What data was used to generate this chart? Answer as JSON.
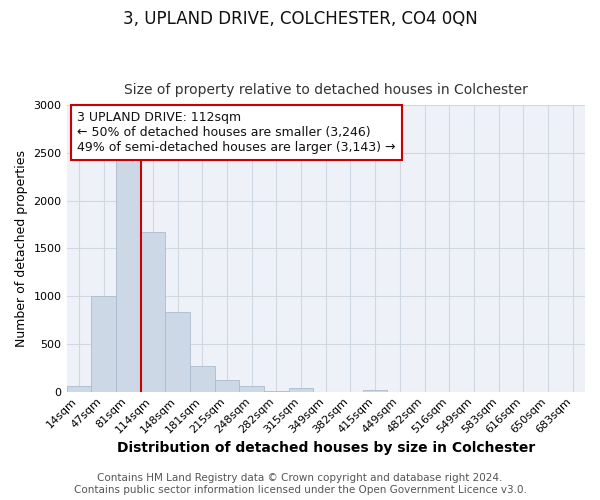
{
  "title": "3, UPLAND DRIVE, COLCHESTER, CO4 0QN",
  "subtitle": "Size of property relative to detached houses in Colchester",
  "xlabel": "Distribution of detached houses by size in Colchester",
  "ylabel": "Number of detached properties",
  "footer_line1": "Contains HM Land Registry data © Crown copyright and database right 2024.",
  "footer_line2": "Contains public sector information licensed under the Open Government Licence v3.0.",
  "bar_labels": [
    "14sqm",
    "47sqm",
    "81sqm",
    "114sqm",
    "148sqm",
    "181sqm",
    "215sqm",
    "248sqm",
    "282sqm",
    "315sqm",
    "349sqm",
    "382sqm",
    "415sqm",
    "449sqm",
    "482sqm",
    "516sqm",
    "549sqm",
    "583sqm",
    "616sqm",
    "650sqm",
    "683sqm"
  ],
  "bar_values": [
    55,
    1000,
    2460,
    1670,
    830,
    270,
    120,
    55,
    10,
    40,
    0,
    0,
    20,
    0,
    0,
    0,
    0,
    0,
    0,
    0,
    0
  ],
  "bar_color": "#cdd8e6",
  "bar_edge_color": "#aabcce",
  "vline_color": "#cc0000",
  "vline_x_index": 2.5,
  "ylim": [
    0,
    3000
  ],
  "annotation_text": "3 UPLAND DRIVE: 112sqm\n← 50% of detached houses are smaller (3,246)\n49% of semi-detached houses are larger (3,143) →",
  "annotation_box_color": "#ffffff",
  "annotation_box_edge": "#cc0000",
  "title_fontsize": 12,
  "subtitle_fontsize": 10,
  "xlabel_fontsize": 10,
  "ylabel_fontsize": 9,
  "tick_fontsize": 8,
  "annotation_fontsize": 9,
  "footer_fontsize": 7.5,
  "grid_color": "#d0d8e4",
  "bg_color": "#eef2f8"
}
